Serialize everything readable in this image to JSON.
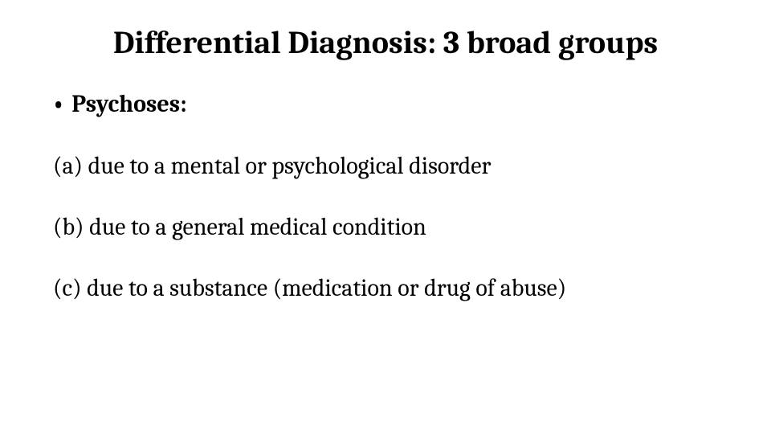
{
  "slide": {
    "title": "Differential Diagnosis: 3 broad groups",
    "bullet": {
      "marker": "•",
      "label": "Psychoses:"
    },
    "items": [
      "(a) due to a mental or psychological disorder",
      "(b) due to a general medical condition",
      "(c)  due to a substance (medication or drug of abuse)"
    ]
  },
  "style": {
    "background_color": "#ffffff",
    "text_color": "#000000",
    "title_fontsize": 40,
    "title_fontweight": 700,
    "bullet_fontsize": 30,
    "bullet_fontweight": 700,
    "item_fontsize": 30,
    "item_fontweight": 400,
    "font_family": "Cambria, Georgia, 'Times New Roman', serif"
  }
}
